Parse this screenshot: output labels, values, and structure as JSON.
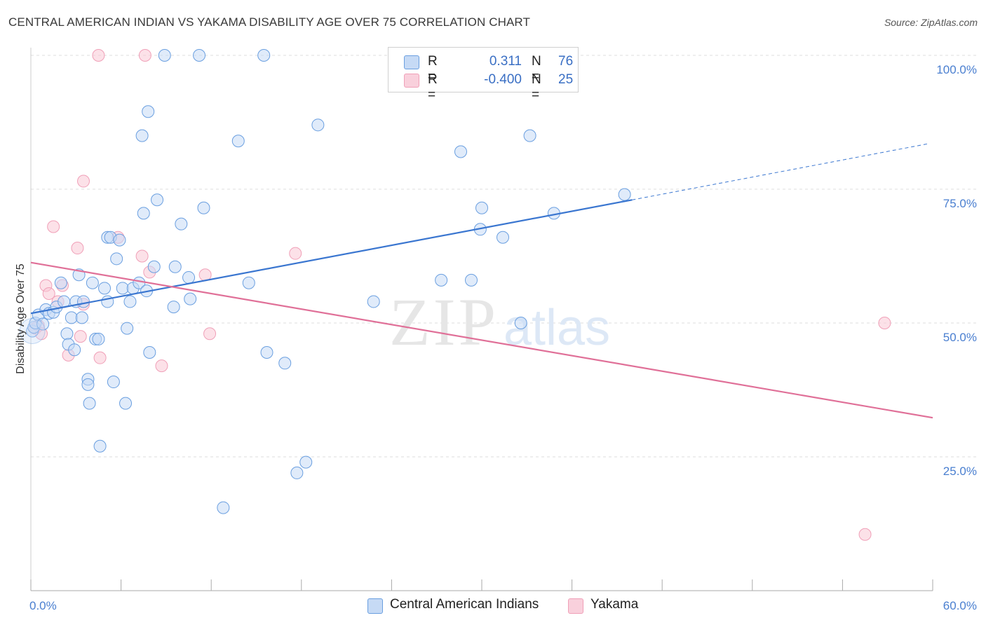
{
  "title": "CENTRAL AMERICAN INDIAN VS YAKAMA DISABILITY AGE OVER 75 CORRELATION CHART",
  "source": "Source: ZipAtlas.com",
  "legend": {
    "rows": [
      {
        "r_label": "R =",
        "r_value": "0.311",
        "n_label": "N =",
        "n_value": "76"
      },
      {
        "r_label": "R =",
        "r_value": "-0.400",
        "n_label": "N =",
        "n_value": "25"
      }
    ]
  },
  "bottom_legend": [
    "Central American Indians",
    "Yakama"
  ],
  "colors": {
    "blue": "#6a9fe0",
    "blue_line": "#3a76d0",
    "pink": "#f0a0b8",
    "pink_line": "#e07098",
    "grid": "#dddddd"
  },
  "chart_data": {
    "type": "scatter",
    "title": "CENTRAL AMERICAN INDIAN VS YAKAMA DISABILITY AGE OVER 75 CORRELATION CHART",
    "xlabel": "",
    "ylabel": "Disability Age Over 75",
    "xlim": [
      0,
      60
    ],
    "ylim": [
      0,
      100
    ],
    "x_tick_labels": [
      "0.0%",
      "60.0%"
    ],
    "y_ticks": [
      25,
      50,
      75,
      100
    ],
    "y_tick_labels": [
      "25.0%",
      "50.0%",
      "75.0%",
      "100.0%"
    ],
    "watermark": {
      "zip": "ZIP",
      "atlas": "atlas"
    },
    "series": [
      {
        "name": "Central American Indians",
        "points": [
          [
            0.1,
            48.5
          ],
          [
            0.2,
            49.2
          ],
          [
            0.3,
            50
          ],
          [
            0.5,
            51.5
          ],
          [
            0.8,
            49.8
          ],
          [
            1.0,
            52.5
          ],
          [
            1.2,
            51.8
          ],
          [
            1.5,
            52
          ],
          [
            1.7,
            53
          ],
          [
            2.0,
            57.5
          ],
          [
            2.2,
            54
          ],
          [
            2.4,
            48
          ],
          [
            2.5,
            46
          ],
          [
            2.7,
            51
          ],
          [
            2.9,
            45
          ],
          [
            3.0,
            54
          ],
          [
            3.2,
            59
          ],
          [
            3.4,
            51
          ],
          [
            3.5,
            54
          ],
          [
            3.8,
            39.5
          ],
          [
            3.8,
            38.5
          ],
          [
            3.9,
            35
          ],
          [
            4.1,
            57.5
          ],
          [
            4.3,
            47
          ],
          [
            4.5,
            47
          ],
          [
            4.6,
            27
          ],
          [
            4.9,
            56.5
          ],
          [
            5.1,
            66
          ],
          [
            5.1,
            54
          ],
          [
            5.3,
            66
          ],
          [
            5.5,
            39
          ],
          [
            5.7,
            62
          ],
          [
            5.9,
            65.5
          ],
          [
            6.1,
            56.5
          ],
          [
            6.3,
            35
          ],
          [
            6.4,
            49
          ],
          [
            6.6,
            54
          ],
          [
            6.8,
            56.5
          ],
          [
            7.2,
            57.5
          ],
          [
            7.4,
            85
          ],
          [
            7.5,
            70.5
          ],
          [
            7.7,
            56
          ],
          [
            7.8,
            89.5
          ],
          [
            7.9,
            44.5
          ],
          [
            8.2,
            60.5
          ],
          [
            8.4,
            73
          ],
          [
            8.9,
            100
          ],
          [
            9.5,
            53
          ],
          [
            9.6,
            60.5
          ],
          [
            10.0,
            68.5
          ],
          [
            10.5,
            58.5
          ],
          [
            10.6,
            54.5
          ],
          [
            11.2,
            100
          ],
          [
            11.5,
            71.5
          ],
          [
            12.8,
            15.5
          ],
          [
            13.8,
            84
          ],
          [
            14.5,
            57.5
          ],
          [
            15.5,
            100
          ],
          [
            15.7,
            44.5
          ],
          [
            16.9,
            42.5
          ],
          [
            17.7,
            22
          ],
          [
            18.3,
            24
          ],
          [
            19.1,
            87
          ],
          [
            22.8,
            54
          ],
          [
            27.3,
            58
          ],
          [
            28.6,
            82
          ],
          [
            29.3,
            58
          ],
          [
            29.9,
            67.5
          ],
          [
            30.0,
            71.5
          ],
          [
            31.4,
            66
          ],
          [
            32.6,
            50
          ],
          [
            33.2,
            85
          ],
          [
            34.8,
            70.5
          ],
          [
            39.5,
            74
          ]
        ]
      },
      {
        "name": "Yakama",
        "points": [
          [
            0.3,
            49
          ],
          [
            0.5,
            49.5
          ],
          [
            0.7,
            48
          ],
          [
            1.0,
            57
          ],
          [
            1.2,
            55.5
          ],
          [
            1.5,
            68
          ],
          [
            1.8,
            54
          ],
          [
            2.1,
            57
          ],
          [
            2.5,
            44
          ],
          [
            3.1,
            64
          ],
          [
            3.3,
            47.5
          ],
          [
            3.5,
            53.5
          ],
          [
            3.5,
            76.5
          ],
          [
            4.6,
            43.5
          ],
          [
            5.8,
            66
          ],
          [
            7.4,
            62.5
          ],
          [
            7.9,
            59.5
          ],
          [
            8.7,
            42
          ],
          [
            11.6,
            59
          ],
          [
            11.9,
            48
          ],
          [
            4.5,
            100
          ],
          [
            7.6,
            100
          ],
          [
            17.6,
            63
          ],
          [
            56.8,
            50
          ],
          [
            55.5,
            10.5
          ]
        ]
      }
    ],
    "trendlines": [
      {
        "series": "Central American Indians",
        "x": [
          0,
          40
        ],
        "y": [
          51.8,
          73
        ],
        "dashed_extension_to_x": 60,
        "dashed_extension_y": 83.5
      },
      {
        "series": "Yakama",
        "x": [
          0,
          60
        ],
        "y": [
          61.3,
          32.3
        ]
      }
    ]
  }
}
